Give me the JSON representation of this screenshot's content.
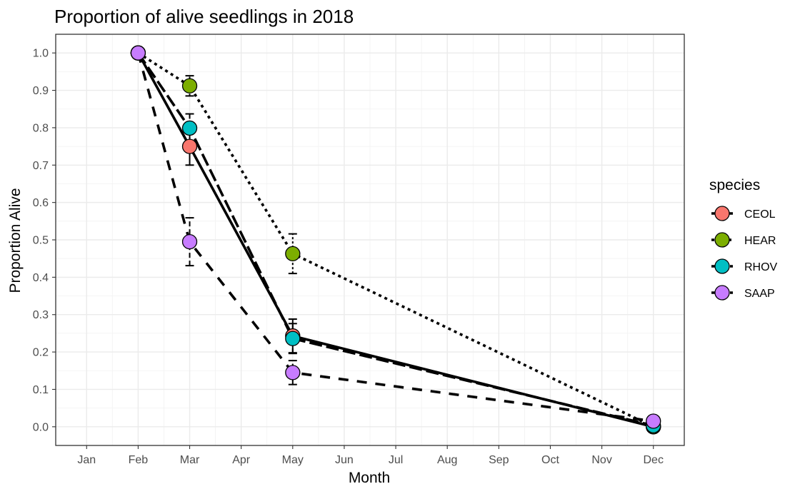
{
  "chart_data": {
    "type": "line",
    "title": "Proportion of alive seedlings in 2018",
    "xlabel": "Month",
    "ylabel": "Proportion Alive",
    "categories": [
      "Jan",
      "Feb",
      "Mar",
      "Apr",
      "May",
      "Jun",
      "Jul",
      "Aug",
      "Sep",
      "Oct",
      "Nov",
      "Dec"
    ],
    "y_ticks": [
      "0.0",
      "0.1",
      "0.2",
      "0.3",
      "0.4",
      "0.5",
      "0.6",
      "0.7",
      "0.8",
      "0.9",
      "1.0"
    ],
    "ylim": [
      -0.05,
      1.05
    ],
    "grid": true,
    "legend_title": "species",
    "legend_position": "right",
    "series": [
      {
        "name": "CEOL",
        "color": "#F8766D",
        "linestyle": "solid",
        "points": [
          {
            "x": "Feb",
            "y": 1.0
          },
          {
            "x": "Mar",
            "y": 0.75,
            "err": 0.05
          },
          {
            "x": "May",
            "y": 0.243,
            "err": 0.045
          },
          {
            "x": "Dec",
            "y": 0.0
          }
        ]
      },
      {
        "name": "HEAR",
        "color": "#7CAE00",
        "linestyle": "dotted",
        "points": [
          {
            "x": "Feb",
            "y": 1.0
          },
          {
            "x": "Mar",
            "y": 0.912,
            "err": 0.027
          },
          {
            "x": "May",
            "y": 0.463,
            "err": 0.053
          },
          {
            "x": "Dec",
            "y": 0.0
          }
        ]
      },
      {
        "name": "RHOV",
        "color": "#00BFC4",
        "linestyle": "longdash",
        "points": [
          {
            "x": "Feb",
            "y": 1.0
          },
          {
            "x": "Mar",
            "y": 0.799,
            "err": 0.038
          },
          {
            "x": "May",
            "y": 0.236,
            "err": 0.04
          },
          {
            "x": "Dec",
            "y": 0.003
          }
        ]
      },
      {
        "name": "SAAP",
        "color": "#C77CFF",
        "linestyle": "dashed",
        "points": [
          {
            "x": "Feb",
            "y": 1.0
          },
          {
            "x": "Mar",
            "y": 0.495,
            "err": 0.064
          },
          {
            "x": "May",
            "y": 0.145,
            "err": 0.032
          },
          {
            "x": "Dec",
            "y": 0.015
          }
        ]
      }
    ]
  }
}
